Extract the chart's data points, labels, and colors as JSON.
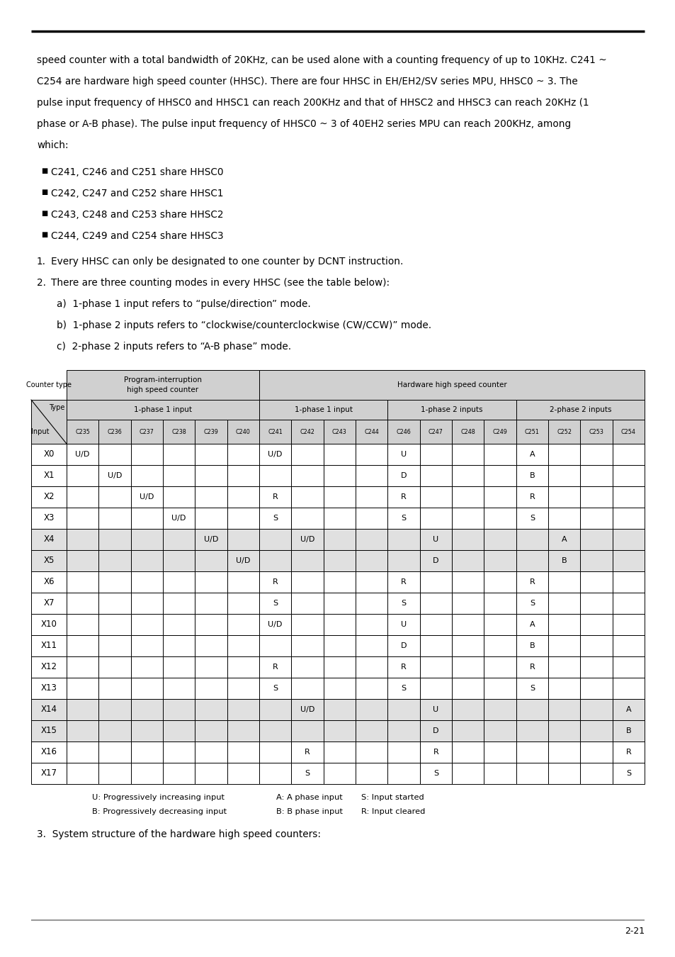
{
  "page_width": 9.54,
  "page_height": 13.5,
  "bg_color": "#ffffff",
  "page_number": "2-21",
  "top_text_lines": [
    "speed counter with a total bandwidth of 20KHz, can be used alone with a counting frequency of up to 10KHz. C241 ~",
    "C254 are hardware high speed counter (HHSC). There are four HHSC in EH/EH2/SV series MPU, HHSC0 ~ 3. The",
    "pulse input frequency of HHSC0 and HHSC1 can reach 200KHz and that of HHSC2 and HHSC3 can reach 20KHz (1",
    "phase or A-B phase). The pulse input frequency of HHSC0 ~ 3 of 40EH2 series MPU can reach 200KHz, among",
    "which:"
  ],
  "bullets": [
    "C241, C246 and C251 share HHSC0",
    "C242, C247 and C252 share HHSC1",
    "C243, C248 and C253 share HHSC2",
    "C244, C249 and C254 share HHSC3"
  ],
  "item1": "Every HHSC can only be designated to one counter by DCNT instruction.",
  "item2": "There are three counting modes in every HHSC (see the table below):",
  "sub_items": [
    "a)  1-phase 1 input refers to “pulse/direction” mode.",
    "b)  1-phase 2 inputs refers to “clockwise/counterclockwise (CW/CCW)” mode.",
    "c)  2-phase 2 inputs refers to “A-B phase” mode."
  ],
  "col_headers": [
    "C235",
    "C236",
    "C237",
    "C238",
    "C239",
    "C240",
    "C241",
    "C242",
    "C243",
    "C244",
    "C246",
    "C247",
    "C248",
    "C249",
    "C251",
    "C252",
    "C253",
    "C254"
  ],
  "input_rows": {
    "X0": [
      "U/D",
      "",
      "",
      "",
      "",
      "",
      "U/D",
      "",
      "",
      "",
      "U",
      "",
      "",
      "",
      "A",
      "",
      "",
      ""
    ],
    "X1": [
      "",
      "U/D",
      "",
      "",
      "",
      "",
      "",
      "",
      "",
      "",
      "D",
      "",
      "",
      "",
      "B",
      "",
      "",
      ""
    ],
    "X2": [
      "",
      "",
      "U/D",
      "",
      "",
      "",
      "R",
      "",
      "",
      "",
      "R",
      "",
      "",
      "",
      "R",
      "",
      "",
      ""
    ],
    "X3": [
      "",
      "",
      "",
      "U/D",
      "",
      "",
      "S",
      "",
      "",
      "",
      "S",
      "",
      "",
      "",
      "S",
      "",
      "",
      ""
    ],
    "X4": [
      "",
      "",
      "",
      "",
      "U/D",
      "",
      "",
      "U/D",
      "",
      "",
      "",
      "U",
      "",
      "",
      "",
      "A",
      "",
      ""
    ],
    "X5": [
      "",
      "",
      "",
      "",
      "",
      "U/D",
      "",
      "",
      "",
      "",
      "",
      "D",
      "",
      "",
      "",
      "B",
      "",
      ""
    ],
    "X6": [
      "",
      "",
      "",
      "",
      "",
      "",
      "R",
      "",
      "",
      "",
      "R",
      "",
      "",
      "",
      "R",
      "",
      "",
      ""
    ],
    "X7": [
      "",
      "",
      "",
      "",
      "",
      "",
      "S",
      "",
      "",
      "",
      "S",
      "",
      "",
      "",
      "S",
      "",
      "",
      ""
    ],
    "X10": [
      "",
      "",
      "",
      "",
      "",
      "",
      "U/D",
      "",
      "",
      "",
      "U",
      "",
      "",
      "",
      "A",
      "",
      "",
      ""
    ],
    "X11": [
      "",
      "",
      "",
      "",
      "",
      "",
      "",
      "",
      "",
      "",
      "D",
      "",
      "",
      "",
      "B",
      "",
      "",
      ""
    ],
    "X12": [
      "",
      "",
      "",
      "",
      "",
      "",
      "R",
      "",
      "",
      "",
      "R",
      "",
      "",
      "",
      "R",
      "",
      "",
      ""
    ],
    "X13": [
      "",
      "",
      "",
      "",
      "",
      "",
      "S",
      "",
      "",
      "",
      "S",
      "",
      "",
      "",
      "S",
      "",
      "",
      ""
    ],
    "X14": [
      "",
      "",
      "",
      "",
      "",
      "",
      "",
      "U/D",
      "",
      "",
      "",
      "U",
      "",
      "",
      "",
      "",
      "",
      "A"
    ],
    "X15": [
      "",
      "",
      "",
      "",
      "",
      "",
      "",
      "",
      "",
      "",
      "",
      "D",
      "",
      "",
      "",
      "",
      "",
      "B"
    ],
    "X16": [
      "",
      "",
      "",
      "",
      "",
      "",
      "",
      "R",
      "",
      "",
      "",
      "R",
      "",
      "",
      "",
      "",
      "",
      "R"
    ],
    "X17": [
      "",
      "",
      "",
      "",
      "",
      "",
      "",
      "S",
      "",
      "",
      "",
      "S",
      "",
      "",
      "",
      "",
      "",
      "S"
    ]
  },
  "light_gray": "#e0e0e0",
  "header_bg": "#d0d0d0",
  "white": "#ffffff"
}
